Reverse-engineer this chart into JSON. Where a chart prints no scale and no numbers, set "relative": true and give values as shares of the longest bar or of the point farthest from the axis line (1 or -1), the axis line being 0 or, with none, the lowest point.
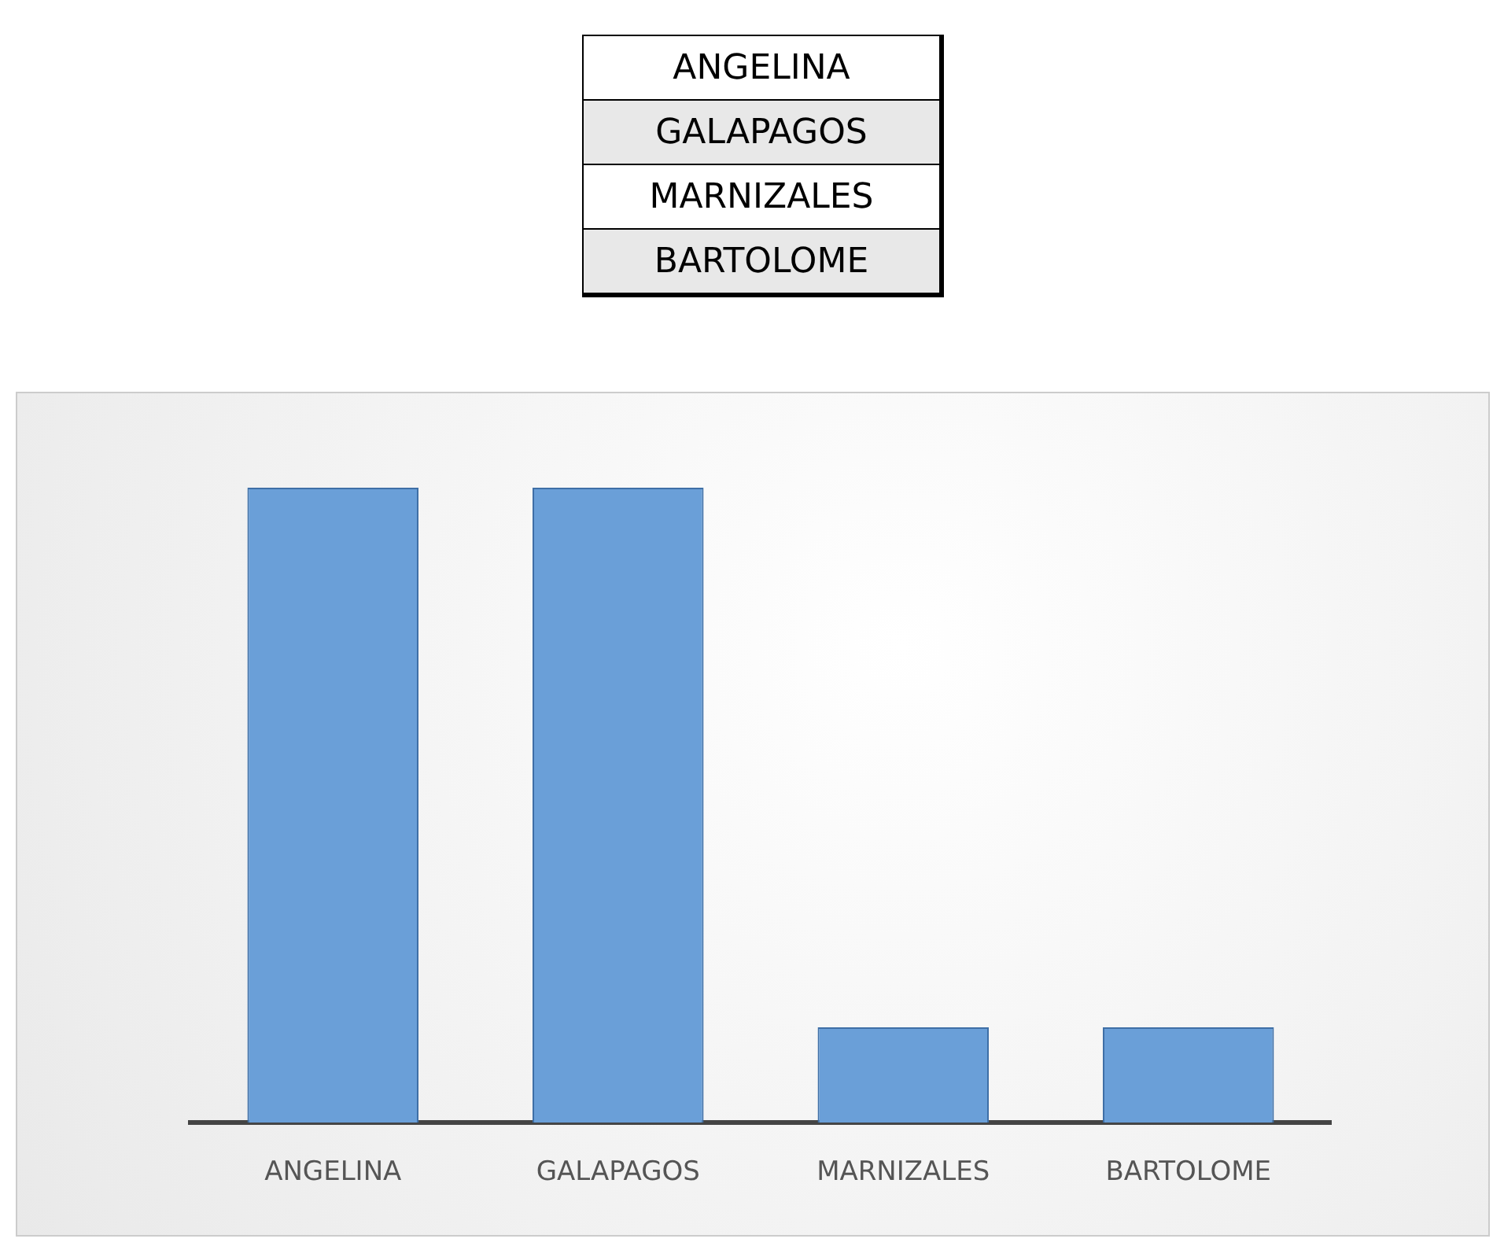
{
  "chart_data": {
    "type": "bar",
    "relative": true,
    "categories": [
      "ANGELINA",
      "GALAPAGOS",
      "MARNIZALES",
      "BARTOLOME"
    ],
    "values": [
      1,
      1,
      0.15,
      0.15
    ],
    "color": "#6a9fd8",
    "annotations": [
      "ANGELINA",
      "GALAPAGOS",
      "MARNIZALES",
      "BARTOLOME"
    ],
    "legend": false
  }
}
